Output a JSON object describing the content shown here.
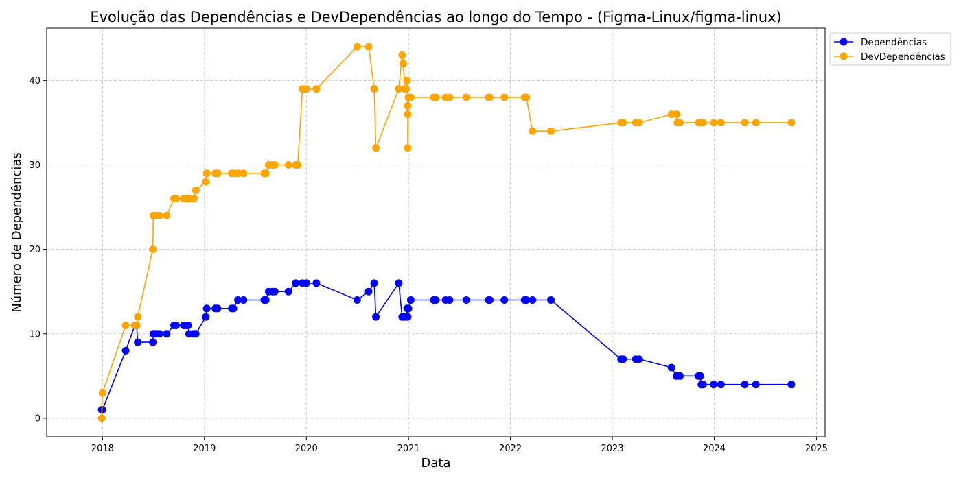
{
  "chart_data": {
    "type": "line",
    "title": "Evolução das Dependências e DevDependências ao longo do Tempo - (Figma-Linux/figma-linux)",
    "xlabel": "Data",
    "ylabel": "Número de Dependências",
    "xlim": [
      "2017-06-15",
      "2025-02-01"
    ],
    "ylim": [
      -2.2,
      46.2
    ],
    "x_ticks": [
      "2018",
      "2019",
      "2020",
      "2021",
      "2022",
      "2023",
      "2024",
      "2025"
    ],
    "y_ticks": [
      0,
      10,
      20,
      30,
      40
    ],
    "grid": true,
    "legend_position": "outside-top-right",
    "series": [
      {
        "name": "Dependências",
        "color": "#0000ff",
        "points": [
          [
            "2017-12-29",
            1
          ],
          [
            "2018-01-01",
            1
          ],
          [
            "2018-03-25",
            8
          ],
          [
            "2018-04-27",
            11
          ],
          [
            "2018-05-03",
            11
          ],
          [
            "2018-05-07",
            9
          ],
          [
            "2018-06-30",
            9
          ],
          [
            "2018-07-02",
            10
          ],
          [
            "2018-07-12",
            10
          ],
          [
            "2018-07-24",
            10
          ],
          [
            "2018-08-19",
            10
          ],
          [
            "2018-09-14",
            11
          ],
          [
            "2018-09-22",
            11
          ],
          [
            "2018-10-19",
            11
          ],
          [
            "2018-10-27",
            11
          ],
          [
            "2018-11-04",
            11
          ],
          [
            "2018-11-07",
            10
          ],
          [
            "2018-11-24",
            10
          ],
          [
            "2018-12-01",
            10
          ],
          [
            "2019-01-06",
            12
          ],
          [
            "2019-01-09",
            13
          ],
          [
            "2019-02-09",
            13
          ],
          [
            "2019-02-17",
            13
          ],
          [
            "2019-04-09",
            13
          ],
          [
            "2019-04-15",
            13
          ],
          [
            "2019-05-01",
            14
          ],
          [
            "2019-05-21",
            14
          ],
          [
            "2019-08-03",
            14
          ],
          [
            "2019-08-09",
            14
          ],
          [
            "2019-08-19",
            15
          ],
          [
            "2019-09-02",
            15
          ],
          [
            "2019-09-10",
            15
          ],
          [
            "2019-10-29",
            15
          ],
          [
            "2019-11-24",
            16
          ],
          [
            "2019-12-18",
            16
          ],
          [
            "2020-01-01",
            16
          ],
          [
            "2020-02-06",
            16
          ],
          [
            "2020-07-01",
            14
          ],
          [
            "2020-08-11",
            15
          ],
          [
            "2020-08-31",
            16
          ],
          [
            "2020-09-06",
            12
          ],
          [
            "2020-11-27",
            16
          ],
          [
            "2020-12-09",
            12
          ],
          [
            "2020-12-13",
            12
          ],
          [
            "2020-12-19",
            12
          ],
          [
            "2020-12-23",
            12
          ],
          [
            "2020-12-27",
            13
          ],
          [
            "2020-12-29",
            12
          ],
          [
            "2021-01-01",
            13
          ],
          [
            "2021-01-09",
            14
          ],
          [
            "2021-04-01",
            14
          ],
          [
            "2021-04-09",
            14
          ],
          [
            "2021-05-14",
            14
          ],
          [
            "2021-05-28",
            14
          ],
          [
            "2021-07-27",
            14
          ],
          [
            "2021-10-15",
            14
          ],
          [
            "2021-10-19",
            14
          ],
          [
            "2021-12-10",
            14
          ],
          [
            "2022-02-21",
            14
          ],
          [
            "2022-02-27",
            14
          ],
          [
            "2022-03-21",
            14
          ],
          [
            "2022-05-26",
            14
          ],
          [
            "2023-02-01",
            7
          ],
          [
            "2023-02-09",
            7
          ],
          [
            "2023-03-26",
            7
          ],
          [
            "2023-04-07",
            7
          ],
          [
            "2023-08-01",
            6
          ],
          [
            "2023-08-19",
            5
          ],
          [
            "2023-08-31",
            5
          ],
          [
            "2023-11-06",
            5
          ],
          [
            "2023-11-12",
            5
          ],
          [
            "2023-11-16",
            4
          ],
          [
            "2023-11-22",
            4
          ],
          [
            "2023-12-30",
            4
          ],
          [
            "2024-01-25",
            4
          ],
          [
            "2024-04-19",
            4
          ],
          [
            "2024-05-29",
            4
          ],
          [
            "2024-10-03",
            4
          ]
        ]
      },
      {
        "name": "DevDependências",
        "color": "#ffa500",
        "points": [
          [
            "2017-12-29",
            0
          ],
          [
            "2018-01-01",
            3
          ],
          [
            "2018-03-25",
            11
          ],
          [
            "2018-04-27",
            11
          ],
          [
            "2018-05-03",
            11
          ],
          [
            "2018-05-07",
            12
          ],
          [
            "2018-06-30",
            20
          ],
          [
            "2018-07-02",
            24
          ],
          [
            "2018-07-12",
            24
          ],
          [
            "2018-07-24",
            24
          ],
          [
            "2018-08-19",
            24
          ],
          [
            "2018-09-14",
            26
          ],
          [
            "2018-09-22",
            26
          ],
          [
            "2018-10-19",
            26
          ],
          [
            "2018-10-27",
            26
          ],
          [
            "2018-11-04",
            26
          ],
          [
            "2018-11-07",
            26
          ],
          [
            "2018-11-24",
            26
          ],
          [
            "2018-12-01",
            27
          ],
          [
            "2019-01-06",
            28
          ],
          [
            "2019-01-09",
            29
          ],
          [
            "2019-02-09",
            29
          ],
          [
            "2019-02-17",
            29
          ],
          [
            "2019-04-09",
            29
          ],
          [
            "2019-04-15",
            29
          ],
          [
            "2019-05-01",
            29
          ],
          [
            "2019-05-21",
            29
          ],
          [
            "2019-08-03",
            29
          ],
          [
            "2019-08-09",
            29
          ],
          [
            "2019-08-19",
            30
          ],
          [
            "2019-09-02",
            30
          ],
          [
            "2019-09-10",
            30
          ],
          [
            "2019-10-29",
            30
          ],
          [
            "2019-11-24",
            30
          ],
          [
            "2019-12-01",
            30
          ],
          [
            "2019-12-18",
            39
          ],
          [
            "2020-01-01",
            39
          ],
          [
            "2020-02-06",
            39
          ],
          [
            "2020-07-01",
            44
          ],
          [
            "2020-08-11",
            44
          ],
          [
            "2020-08-31",
            39
          ],
          [
            "2020-09-06",
            32
          ],
          [
            "2020-11-27",
            39
          ],
          [
            "2020-12-09",
            43
          ],
          [
            "2020-12-13",
            42
          ],
          [
            "2020-12-19",
            39
          ],
          [
            "2020-12-23",
            39
          ],
          [
            "2020-12-27",
            40
          ],
          [
            "2020-12-29",
            37
          ],
          [
            "2020-12-29",
            36
          ],
          [
            "2020-12-29",
            32
          ],
          [
            "2021-01-01",
            38
          ],
          [
            "2021-01-09",
            38
          ],
          [
            "2021-04-01",
            38
          ],
          [
            "2021-04-09",
            38
          ],
          [
            "2021-05-14",
            38
          ],
          [
            "2021-05-28",
            38
          ],
          [
            "2021-07-27",
            38
          ],
          [
            "2021-10-15",
            38
          ],
          [
            "2021-10-19",
            38
          ],
          [
            "2021-12-10",
            38
          ],
          [
            "2022-02-21",
            38
          ],
          [
            "2022-02-27",
            38
          ],
          [
            "2022-03-21",
            34
          ],
          [
            "2022-05-26",
            34
          ],
          [
            "2023-02-01",
            35
          ],
          [
            "2023-02-09",
            35
          ],
          [
            "2023-03-26",
            35
          ],
          [
            "2023-04-07",
            35
          ],
          [
            "2023-08-01",
            36
          ],
          [
            "2023-08-19",
            36
          ],
          [
            "2023-08-22",
            35
          ],
          [
            "2023-08-31",
            35
          ],
          [
            "2023-11-06",
            35
          ],
          [
            "2023-11-12",
            35
          ],
          [
            "2023-11-16",
            35
          ],
          [
            "2023-11-22",
            35
          ],
          [
            "2023-12-30",
            35
          ],
          [
            "2024-01-25",
            35
          ],
          [
            "2024-04-19",
            35
          ],
          [
            "2024-05-29",
            35
          ],
          [
            "2024-10-03",
            35
          ]
        ]
      }
    ]
  }
}
